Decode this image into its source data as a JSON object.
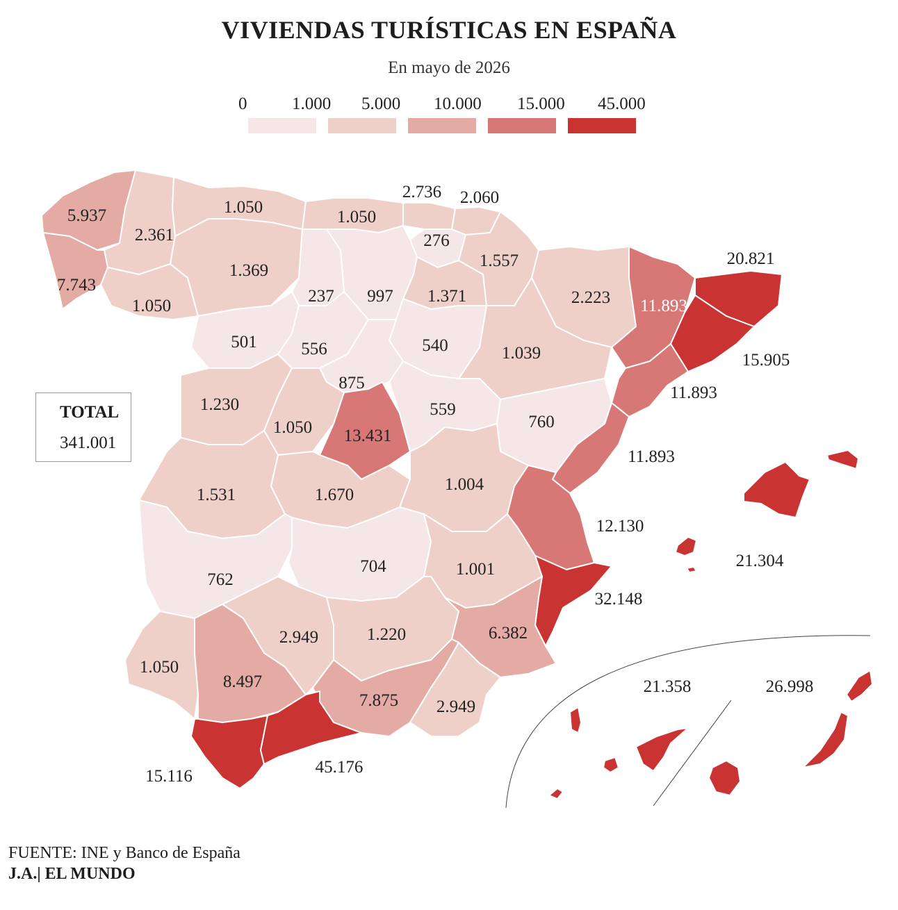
{
  "title": "VIVIENDAS TURÍSTICAS EN ESPAÑA",
  "subtitle": "En mayo de 2026",
  "legend": {
    "labels": [
      "0",
      "1.000",
      "5.000",
      "10.000",
      "15.000",
      "45.000"
    ],
    "colors": [
      "#f5e6e8",
      "#efd0c9",
      "#e4aaa4",
      "#d87876",
      "#c93433"
    ]
  },
  "total": {
    "title": "TOTAL",
    "value": "341.001"
  },
  "source": "FUENTE: INE y Banco de España",
  "credit": "J.A.| EL MUNDO",
  "regions": [
    {
      "name": "a-coruna",
      "value": "5.937",
      "color": "#e4aaa4"
    },
    {
      "name": "lugo",
      "value": "2.361",
      "color": "#efd0c9"
    },
    {
      "name": "asturias",
      "value": "1.050",
      "color": "#efd0c9"
    },
    {
      "name": "cantabria",
      "value": "1.050",
      "color": "#efd0c9"
    },
    {
      "name": "vizcaya",
      "value": "2.736",
      "color": "#efd0c9"
    },
    {
      "name": "guipuzcoa",
      "value": "2.060",
      "color": "#efd0c9"
    },
    {
      "name": "alava",
      "value": "276",
      "color": "#f5e6e8"
    },
    {
      "name": "navarra",
      "value": "1.557",
      "color": "#efd0c9"
    },
    {
      "name": "huesca",
      "value": "2.223",
      "color": "#efd0c9"
    },
    {
      "name": "lleida",
      "value": "11.893",
      "color": "#d87876"
    },
    {
      "name": "girona",
      "value": "20.821",
      "color": "#c93433"
    },
    {
      "name": "barcelona",
      "value": "15.905",
      "color": "#c93433"
    },
    {
      "name": "tarragona",
      "value": "11.893",
      "color": "#d87876"
    },
    {
      "name": "pontevedra",
      "value": "7.743",
      "color": "#e4aaa4"
    },
    {
      "name": "ourense",
      "value": "1.050",
      "color": "#efd0c9"
    },
    {
      "name": "leon",
      "value": "1.369",
      "color": "#efd0c9"
    },
    {
      "name": "palencia",
      "value": "237",
      "color": "#f5e6e8"
    },
    {
      "name": "burgos",
      "value": "997",
      "color": "#f5e6e8"
    },
    {
      "name": "la-rioja",
      "value": "1.371",
      "color": "#efd0c9"
    },
    {
      "name": "zamora",
      "value": "501",
      "color": "#f5e6e8"
    },
    {
      "name": "valladolid",
      "value": "556",
      "color": "#f5e6e8"
    },
    {
      "name": "soria",
      "value": "540",
      "color": "#f5e6e8"
    },
    {
      "name": "zaragoza",
      "value": "1.039",
      "color": "#efd0c9"
    },
    {
      "name": "segovia",
      "value": "875",
      "color": "#f5e6e8"
    },
    {
      "name": "salamanca",
      "value": "1.230",
      "color": "#efd0c9"
    },
    {
      "name": "avila",
      "value": "1.050",
      "color": "#efd0c9"
    },
    {
      "name": "madrid",
      "value": "13.431",
      "color": "#d87876"
    },
    {
      "name": "guadalajara",
      "value": "559",
      "color": "#f5e6e8"
    },
    {
      "name": "teruel",
      "value": "760",
      "color": "#f5e6e8"
    },
    {
      "name": "castellon",
      "value": "11.893",
      "color": "#d87876"
    },
    {
      "name": "caceres",
      "value": "1.531",
      "color": "#efd0c9"
    },
    {
      "name": "toledo",
      "value": "1.670",
      "color": "#efd0c9"
    },
    {
      "name": "cuenca",
      "value": "1.004",
      "color": "#efd0c9"
    },
    {
      "name": "valencia",
      "value": "12.130",
      "color": "#d87876"
    },
    {
      "name": "baleares",
      "value": "21.304",
      "color": "#c93433"
    },
    {
      "name": "badajoz",
      "value": "762",
      "color": "#f5e6e8"
    },
    {
      "name": "ciudad-real",
      "value": "704",
      "color": "#f5e6e8"
    },
    {
      "name": "albacete",
      "value": "1.001",
      "color": "#efd0c9"
    },
    {
      "name": "alicante",
      "value": "32.148",
      "color": "#c93433"
    },
    {
      "name": "huelva",
      "value": "1.050",
      "color": "#efd0c9"
    },
    {
      "name": "sevilla",
      "value": "8.497",
      "color": "#e4aaa4"
    },
    {
      "name": "cordoba",
      "value": "2.949",
      "color": "#efd0c9"
    },
    {
      "name": "jaen",
      "value": "1.220",
      "color": "#efd0c9"
    },
    {
      "name": "murcia",
      "value": "6.382",
      "color": "#e4aaa4"
    },
    {
      "name": "granada",
      "value": "7.875",
      "color": "#e4aaa4"
    },
    {
      "name": "almeria",
      "value": "2.949",
      "color": "#efd0c9"
    },
    {
      "name": "cadiz",
      "value": "15.116",
      "color": "#c93433"
    },
    {
      "name": "malaga",
      "value": "45.176",
      "color": "#c93433"
    },
    {
      "name": "santa-cruz-de-tenerife",
      "value": "21.358",
      "color": "#c93433"
    },
    {
      "name": "las-palmas",
      "value": "26.998",
      "color": "#c93433"
    }
  ]
}
